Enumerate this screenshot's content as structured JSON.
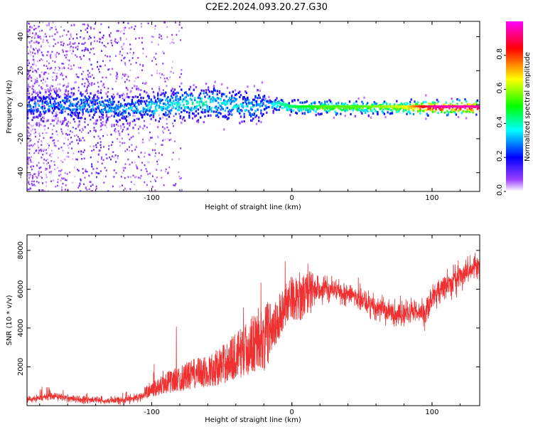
{
  "title": "C2E2.2024.093.20.27.G30",
  "colors": {
    "snr_line": "#ee3030"
  },
  "chart_data": [
    {
      "type": "heatmap",
      "xlabel": "Height of straight line (km)",
      "ylabel": "Frequency (Hz)",
      "xlim": [
        -189,
        134
      ],
      "ylim": [
        -51,
        49
      ],
      "xticks": [
        -100,
        0,
        100
      ],
      "xtick_labels": [
        "-100",
        "0",
        "100"
      ],
      "yticks": [
        -40,
        -20,
        0,
        20,
        40
      ],
      "ytick_labels": [
        "-40",
        "-20",
        "0",
        "20",
        "40"
      ],
      "grid": false,
      "colorbar": {
        "label": "Normalized spectral amplitude",
        "range": [
          0,
          1
        ],
        "ticks": [
          0.0,
          0.2,
          0.4,
          0.6,
          0.8
        ],
        "tick_labels": [
          "0.0",
          "0.2",
          "0.4",
          "0.6",
          "0.8"
        ],
        "colormap": [
          "#ffffff",
          "#7f00ff",
          "#0000ff",
          "#00ffff",
          "#00ff00",
          "#ffff00",
          "#ff0000",
          "#ff00ff"
        ]
      },
      "dominant_track": {
        "description": "energy concentrated near 0 Hz",
        "x": [
          -189,
          -150,
          -120,
          -100,
          -80,
          -60,
          -40,
          -30,
          -20,
          -10,
          0,
          20,
          50,
          80,
          100,
          134
        ],
        "center_hz": [
          0,
          0,
          -2,
          -1,
          1,
          2,
          0,
          -1,
          0,
          1,
          -1,
          -1,
          -1,
          -1,
          -1,
          -1
        ],
        "amplitude": [
          0.25,
          0.3,
          0.3,
          0.35,
          0.4,
          0.4,
          0.35,
          0.35,
          0.3,
          0.4,
          0.45,
          0.55,
          0.55,
          0.65,
          0.95,
          0.95
        ]
      }
    },
    {
      "type": "line",
      "xlabel": "Height of straight line (km)",
      "ylabel": "SNR (10 * v/v)",
      "xlim": [
        -189,
        134
      ],
      "ylim": [
        0,
        8800
      ],
      "xticks": [
        -100,
        0,
        100
      ],
      "xtick_labels": [
        "-100",
        "0",
        "100"
      ],
      "yticks": [
        2000,
        4000,
        6000,
        8000
      ],
      "ytick_labels": [
        "2000",
        "4000",
        "6000",
        "8000"
      ],
      "grid": false,
      "series": [
        {
          "x": [
            -189,
            -170,
            -160,
            -150,
            -140,
            -130,
            -120,
            -110,
            -100,
            -90,
            -80,
            -70,
            -60,
            -50,
            -40,
            -30,
            -25,
            -20,
            -15,
            -10,
            -5,
            0,
            5,
            10,
            20,
            30,
            40,
            50,
            60,
            70,
            80,
            90,
            95,
            100,
            110,
            120,
            134
          ],
          "values": [
            300,
            500,
            400,
            300,
            300,
            250,
            300,
            400,
            700,
            1000,
            1200,
            1400,
            1500,
            1800,
            2200,
            2600,
            3000,
            2800,
            3600,
            4400,
            5200,
            5600,
            5400,
            5800,
            6000,
            6000,
            5800,
            5400,
            5000,
            4800,
            4700,
            4900,
            4800,
            5600,
            6200,
            6700,
            7200
          ]
        }
      ]
    }
  ]
}
